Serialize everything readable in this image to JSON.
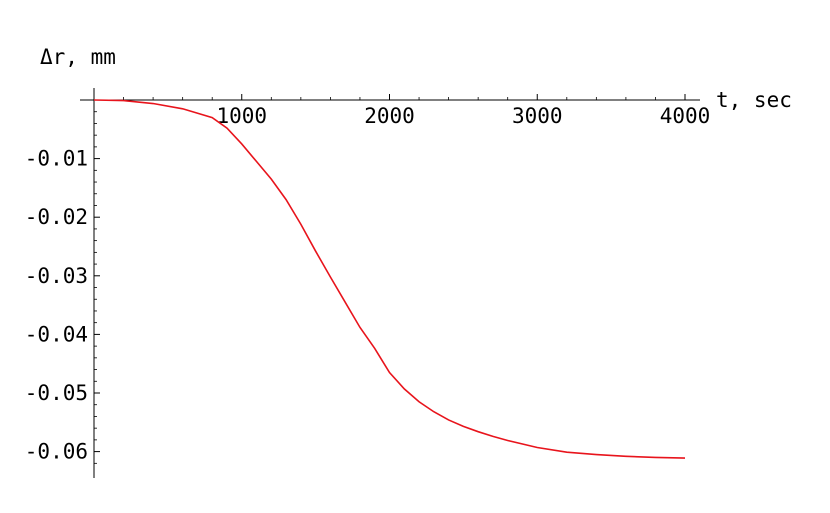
{
  "chart_data": {
    "type": "line",
    "title": "",
    "xlabel": "t, sec",
    "ylabel": "Δr, mm",
    "xlim": [
      0,
      4000
    ],
    "ylim": [
      -0.0625,
      0
    ],
    "grid": false,
    "x_ticks": [
      {
        "value": 1000,
        "label": "1000"
      },
      {
        "value": 2000,
        "label": "2000"
      },
      {
        "value": 3000,
        "label": "3000"
      },
      {
        "value": 4000,
        "label": "4000"
      }
    ],
    "y_ticks": [
      {
        "value": -0.01,
        "label": "-0.01"
      },
      {
        "value": -0.02,
        "label": "-0.02"
      },
      {
        "value": -0.03,
        "label": "-0.03"
      },
      {
        "value": -0.04,
        "label": "-0.04"
      },
      {
        "value": -0.05,
        "label": "-0.05"
      },
      {
        "value": -0.06,
        "label": "-0.06"
      }
    ],
    "series": [
      {
        "color": "#e8141c",
        "x": [
          0,
          200,
          400,
          600,
          800,
          900,
          1000,
          1100,
          1200,
          1300,
          1400,
          1500,
          1600,
          1700,
          1800,
          1900,
          2000,
          2100,
          2200,
          2300,
          2400,
          2500,
          2600,
          2700,
          2800,
          3000,
          3200,
          3400,
          3600,
          3800,
          4000
        ],
        "y": [
          0,
          -0.0001,
          -0.0006,
          -0.0015,
          -0.003,
          -0.0048,
          -0.0075,
          -0.0105,
          -0.0135,
          -0.017,
          -0.0212,
          -0.0258,
          -0.0302,
          -0.0345,
          -0.0388,
          -0.0424,
          -0.0465,
          -0.0493,
          -0.0515,
          -0.0532,
          -0.0546,
          -0.0557,
          -0.0566,
          -0.0574,
          -0.0581,
          -0.0593,
          -0.0601,
          -0.0605,
          -0.0608,
          -0.061,
          -0.0611
        ]
      }
    ]
  }
}
